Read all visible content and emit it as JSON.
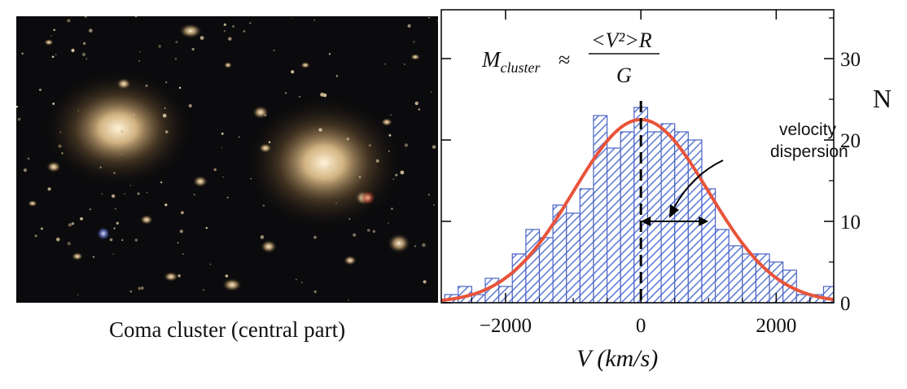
{
  "photo": {
    "caption": "Coma cluster (central part)"
  },
  "colors": {
    "bar_hatch": "#5b79d6",
    "bar_edge": "#4a63c4",
    "curve": "#e8533a",
    "axis": "#000000",
    "sky": "#0b0b0d"
  },
  "chart_data": {
    "type": "bar",
    "xlabel": "V  (km/s)",
    "ylabel": "N",
    "xlim": [
      -2950,
      2850
    ],
    "ylim": [
      0,
      36
    ],
    "x_ticks": [
      -2000,
      0,
      2000
    ],
    "x_tick_labels": [
      "−2000",
      "0",
      "2000"
    ],
    "y_ticks": [
      0,
      10,
      20,
      30
    ],
    "y_tick_labels": [
      "0",
      "10",
      "20",
      "30"
    ],
    "y_axis_side": "right",
    "bin_width": 200,
    "bin_left_edges": [
      -2900,
      -2700,
      -2500,
      -2300,
      -2100,
      -1900,
      -1700,
      -1500,
      -1300,
      -1100,
      -900,
      -700,
      -500,
      -300,
      -100,
      100,
      300,
      500,
      700,
      900,
      1100,
      1300,
      1500,
      1700,
      1900,
      2100,
      2300,
      2500,
      2700
    ],
    "values": [
      1,
      2,
      1,
      3,
      2,
      6,
      9,
      8,
      12,
      11,
      14,
      23,
      19,
      21,
      24,
      21,
      22,
      21,
      20,
      14,
      9,
      7,
      6,
      6,
      5,
      4,
      1,
      1,
      2
    ],
    "fit_curve": {
      "type": "gaussian",
      "mean": 0,
      "sigma": 1000,
      "peak": 22.5,
      "color": "#e8533a"
    },
    "mean_line": {
      "x": 0,
      "style": "dashed"
    },
    "formula": {
      "lhs": "M",
      "lhs_sub": "cluster",
      "approx": "≈",
      "numerator": "<V²>R",
      "denominator": "G"
    },
    "annotation": {
      "text_line1": "velocity",
      "text_line2": "dispersion",
      "arrow_span": [
        0,
        1000
      ],
      "arrow_y": 10
    }
  }
}
